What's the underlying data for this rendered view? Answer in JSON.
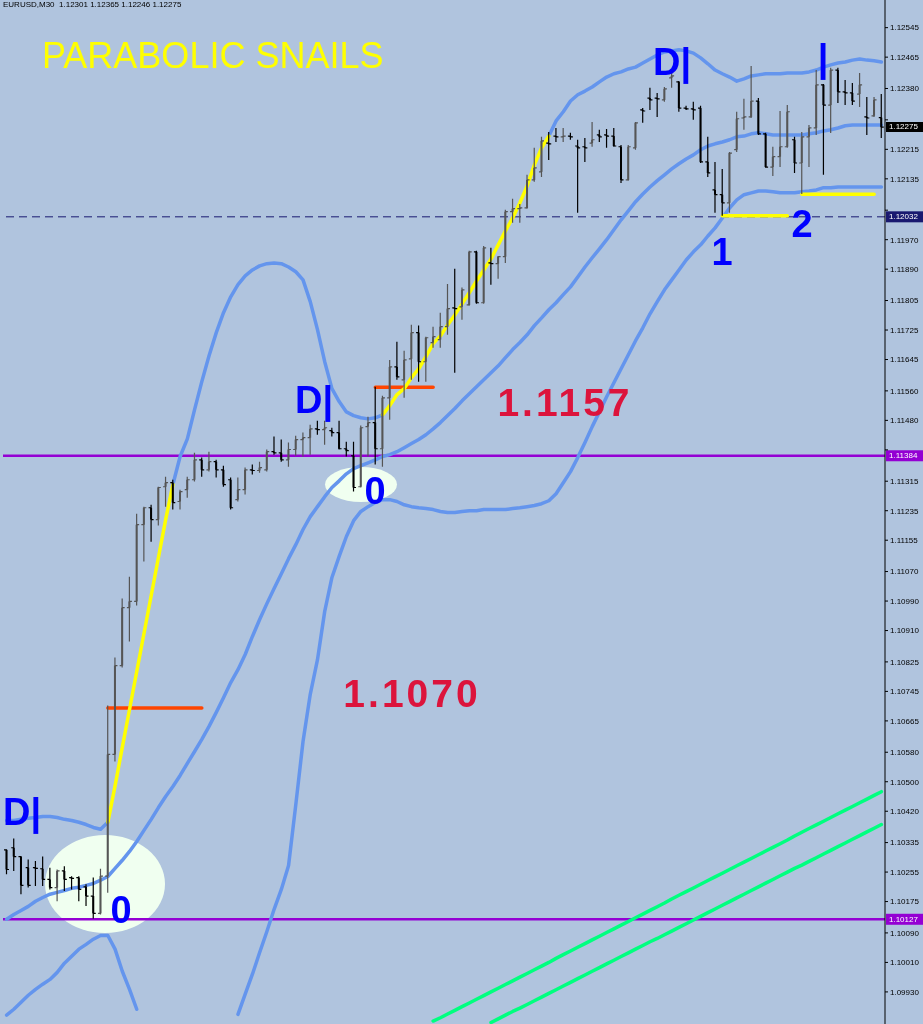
{
  "chart_data": {
    "type": "candlestick",
    "title": "PARABOLIC SNAILS",
    "subtitle": "EURUSD,M30  1.12301 1.12365 1.12246 1.12275",
    "categories": [
      null,
      null,
      null,
      null,
      null,
      null,
      null,
      null,
      null,
      null,
      null,
      null,
      null,
      null,
      null,
      null,
      null,
      null,
      null,
      null,
      null,
      null,
      null,
      null,
      null,
      null,
      null,
      null,
      null,
      null,
      null,
      null,
      null,
      null,
      null,
      null,
      null,
      null,
      null,
      null,
      null,
      null,
      null,
      null,
      null,
      null,
      null,
      null,
      null,
      null,
      null,
      null,
      null,
      null,
      null,
      null,
      null,
      null,
      null,
      null,
      null,
      null,
      null,
      null,
      null,
      null,
      null,
      null,
      null,
      null,
      null,
      null,
      null,
      null,
      null,
      null,
      null,
      null,
      null,
      null,
      null,
      null,
      null,
      null,
      null,
      null,
      null,
      null,
      null,
      null,
      null,
      null,
      null,
      null,
      null,
      null,
      null,
      null,
      null,
      null,
      null,
      null,
      null,
      null,
      null,
      null,
      null,
      null,
      null,
      null,
      null,
      null,
      null,
      null,
      null,
      null,
      null,
      null,
      null,
      null,
      null,
      null
    ],
    "colors": [
      "#000000",
      "#000000",
      "#000000",
      "#000000",
      "#000000",
      "#000000",
      "#000000",
      "#555555",
      "#000000",
      "#000000",
      "#000000",
      "#000000",
      "#000000",
      "#555555",
      "#555555",
      "#555555",
      "#555555",
      "#555555",
      "#555555",
      "#555555",
      "#000000",
      "#555555",
      "#555555",
      "#000000",
      "#555555",
      "#555555",
      "#555555",
      "#000000",
      "#555555",
      "#000000",
      "#000000",
      "#000000",
      "#555555",
      "#555555",
      "#000000",
      "#555555",
      "#555555",
      "#000000",
      "#000000",
      "#555555",
      "#555555",
      "#555555",
      "#555555",
      "#000000",
      "#555555",
      "#000000",
      "#000000",
      "#000000",
      "#000000",
      "#555555",
      "#555555",
      "#000000",
      "#555555",
      "#555555",
      "#000000",
      "#555555",
      "#555555",
      "#000000",
      "#555555",
      "#555555",
      "#555555",
      "#555555",
      "#000000",
      "#555555",
      "#555555",
      "#000000",
      "#555555",
      "#000000",
      "#555555",
      "#555555",
      "#555555",
      "#555555",
      "#555555",
      "#555555",
      "#555555",
      "#000000",
      "#000000",
      "#555555",
      "#000000",
      "#000000",
      "#000000",
      "#555555",
      "#000000",
      "#000000",
      "#000000",
      "#000000",
      "#555555",
      "#555555",
      "#000000",
      "#000000",
      "#000000",
      "#555555",
      "#555555",
      "#000000",
      "#000000",
      "#000000",
      "#000000",
      "#000000",
      "#000000",
      "#000000",
      "#555555",
      "#555555",
      "#555555",
      "#555555",
      "#000000",
      "#000000",
      "#555555",
      "#555555",
      "#555555",
      "#000000",
      "#555555",
      "#555555",
      "#555555",
      "#000000",
      "#555555",
      "#000000",
      "#000000",
      "#000000",
      "#555555",
      "#000000",
      "#555555",
      "#000000"
    ],
    "ohlc": [
      [
        1.10315,
        1.10317,
        1.10249,
        1.10262
      ],
      [
        1.10321,
        1.10346,
        1.10258,
        1.10297
      ],
      [
        1.10297,
        1.10298,
        1.10195,
        1.10219
      ],
      [
        1.10267,
        1.10289,
        1.10213,
        1.10219
      ],
      [
        1.10267,
        1.10285,
        1.10217,
        1.10265
      ],
      [
        1.10264,
        1.10297,
        1.10217,
        1.10235
      ],
      [
        1.10235,
        1.10267,
        1.10208,
        1.10213
      ],
      [
        1.10213,
        1.10262,
        1.10176,
        1.10258
      ],
      [
        1.10258,
        1.10271,
        1.10204,
        1.10235
      ],
      [
        1.1024,
        1.10244,
        1.10208,
        1.10238
      ],
      [
        1.1024,
        1.10244,
        1.10176,
        1.10208
      ],
      [
        1.10215,
        1.10222,
        1.10163,
        1.1019
      ],
      [
        1.1019,
        1.1024,
        1.10129,
        1.10143
      ],
      [
        1.10143,
        1.10264,
        1.1014,
        1.10244
      ],
      [
        1.10244,
        1.10707,
        1.10199,
        1.10574
      ],
      [
        1.10574,
        1.10837,
        1.10555,
        1.10815
      ],
      [
        1.10815,
        1.10997,
        1.1081,
        1.10972
      ],
      [
        1.10972,
        1.11056,
        1.1088,
        1.10989
      ],
      [
        1.10989,
        1.11227,
        1.10978,
        1.11197
      ],
      [
        1.11197,
        1.11246,
        1.11097,
        1.11243
      ],
      [
        1.11243,
        1.11251,
        1.11151,
        1.11211
      ],
      [
        1.11211,
        1.113,
        1.11195,
        1.11298
      ],
      [
        1.113,
        1.11327,
        1.11246,
        1.11311
      ],
      [
        1.11311,
        1.11319,
        1.11238,
        1.11257
      ],
      [
        1.1126,
        1.11292,
        1.11238,
        1.11287
      ],
      [
        1.11292,
        1.11327,
        1.1127,
        1.11319
      ],
      [
        1.11319,
        1.11392,
        1.11314,
        1.11373
      ],
      [
        1.11373,
        1.11379,
        1.11327,
        1.11346
      ],
      [
        1.11346,
        1.11395,
        1.11341,
        1.11368
      ],
      [
        1.11368,
        1.11373,
        1.11325,
        1.11346
      ],
      [
        1.11346,
        1.11357,
        1.113,
        1.11306
      ],
      [
        1.11319,
        1.11325,
        1.11238,
        1.11243
      ],
      [
        1.11265,
        1.11325,
        1.1126,
        1.11292
      ],
      [
        1.11292,
        1.11352,
        1.11279,
        1.11346
      ],
      [
        1.11346,
        1.1136,
        1.11333,
        1.11344
      ],
      [
        1.11344,
        1.11368,
        1.11338,
        1.11352
      ],
      [
        1.11346,
        1.11401,
        1.11341,
        1.11395
      ],
      [
        1.11395,
        1.11436,
        1.11387,
        1.11392
      ],
      [
        1.11392,
        1.11428,
        1.11368,
        1.11373
      ],
      [
        1.11373,
        1.1142,
        1.11354,
        1.11401
      ],
      [
        1.11401,
        1.11438,
        1.11384,
        1.11428
      ],
      [
        1.11428,
        1.11447,
        1.11382,
        1.11433
      ],
      [
        1.11433,
        1.11468,
        1.11387,
        1.11457
      ],
      [
        1.11457,
        1.11479,
        1.11441,
        1.11455
      ],
      [
        1.11455,
        1.11479,
        1.11414,
        1.1146
      ],
      [
        1.11452,
        1.1146,
        1.11436,
        1.11447
      ],
      [
        1.11447,
        1.11479,
        1.11401,
        1.11403
      ],
      [
        1.11403,
        1.11422,
        1.11382,
        1.11398
      ],
      [
        1.11384,
        1.11422,
        1.11287,
        1.11298
      ],
      [
        1.113,
        1.11466,
        1.11298,
        1.1146
      ],
      [
        1.11463,
        1.1149,
        1.11382,
        1.11474
      ],
      [
        1.11474,
        1.11571,
        1.1136,
        1.11403
      ],
      [
        1.11403,
        1.11547,
        1.11354,
        1.11541
      ],
      [
        1.11541,
        1.11644,
        1.11482,
        1.11625
      ],
      [
        1.11625,
        1.11693,
        1.1159,
        1.11598
      ],
      [
        1.1159,
        1.11669,
        1.11541,
        1.11644
      ],
      [
        1.11647,
        1.11739,
        1.1159,
        1.11718
      ],
      [
        1.11718,
        1.11737,
        1.11585,
        1.11639
      ],
      [
        1.11639,
        1.11707,
        1.11585,
        1.11704
      ],
      [
        1.11691,
        1.11734,
        1.11677,
        1.11707
      ],
      [
        1.11699,
        1.11772,
        1.11677,
        1.11734
      ],
      [
        1.11734,
        1.1185,
        1.11712,
        1.11783
      ],
      [
        1.11785,
        1.11891,
        1.11609,
        1.11783
      ],
      [
        1.11788,
        1.1184,
        1.11753,
        1.11834
      ],
      [
        1.11793,
        1.1194,
        1.11791,
        1.11937
      ],
      [
        1.11937,
        1.1194,
        1.11796,
        1.11799
      ],
      [
        1.11799,
        1.11953,
        1.11796,
        1.11948
      ],
      [
        1.11907,
        1.11948,
        1.11848,
        1.11905
      ],
      [
        1.11905,
        1.11926,
        1.11864,
        1.11924
      ],
      [
        1.11924,
        1.12051,
        1.11907,
        1.12046
      ],
      [
        1.12046,
        1.12081,
        1.12016,
        1.12054
      ],
      [
        1.12054,
        1.12067,
        1.12016,
        1.12056
      ],
      [
        1.12056,
        1.12146,
        1.12054,
        1.12132
      ],
      [
        1.12132,
        1.12219,
        1.12127,
        1.12165
      ],
      [
        1.12154,
        1.12249,
        1.1214,
        1.12238
      ],
      [
        1.12232,
        1.12262,
        1.12186,
        1.1223
      ],
      [
        1.12251,
        1.12273,
        1.12235,
        1.12249
      ],
      [
        1.12249,
        1.12273,
        1.12235,
        1.12251
      ],
      [
        1.12251,
        1.1226,
        1.12241,
        1.12249
      ],
      [
        1.12224,
        1.12241,
        1.12043,
        1.12219
      ],
      [
        1.12222,
        1.12246,
        1.12181,
        1.12219
      ],
      [
        1.12232,
        1.12289,
        1.12222,
        1.12241
      ],
      [
        1.12254,
        1.12268,
        1.12235,
        1.12249
      ],
      [
        1.12254,
        1.1227,
        1.12219,
        1.12251
      ],
      [
        1.12251,
        1.12273,
        1.12222,
        1.12224
      ],
      [
        1.12222,
        1.12227,
        1.12124,
        1.12132
      ],
      [
        1.12132,
        1.12227,
        1.1213,
        1.12222
      ],
      [
        1.12219,
        1.12289,
        1.12214,
        1.12287
      ],
      [
        1.12322,
        1.12327,
        1.12287,
        1.12319
      ],
      [
        1.12354,
        1.12382,
        1.12322,
        1.12349
      ],
      [
        1.12354,
        1.12368,
        1.12303,
        1.12352
      ],
      [
        1.12349,
        1.12384,
        1.12344,
        1.12379
      ],
      [
        1.12409,
        1.12422,
        1.12382,
        1.12414
      ],
      [
        1.12398,
        1.124,
        1.12317,
        1.12327
      ],
      [
        1.12327,
        1.12333,
        1.12322,
        1.12325
      ],
      [
        1.12325,
        1.12344,
        1.12295,
        1.12322
      ],
      [
        1.12327,
        1.12333,
        1.12178,
        1.12181
      ],
      [
        1.12181,
        1.12249,
        1.1214,
        1.12151
      ],
      [
        1.12105,
        1.12181,
        1.12043,
        1.12092
      ],
      [
        1.12092,
        1.12162,
        1.12035,
        1.1207
      ],
      [
        1.1207,
        1.12208,
        1.12043,
        1.12205
      ],
      [
        1.12214,
        1.12317,
        1.12208,
        1.12298
      ],
      [
        1.123,
        1.12352,
        1.12268,
        1.12303
      ],
      [
        1.12303,
        1.12441,
        1.123,
        1.12346
      ],
      [
        1.12346,
        1.12354,
        1.12254,
        1.12257
      ],
      [
        1.12257,
        1.1226,
        1.12165,
        1.12167
      ],
      [
        1.12167,
        1.12222,
        1.12143,
        1.12195
      ],
      [
        1.12195,
        1.12319,
        1.12167,
        1.12222
      ],
      [
        1.12222,
        1.12335,
        1.12219,
        1.12317
      ],
      [
        1.12241,
        1.12249,
        1.12151,
        1.12178
      ],
      [
        1.12178,
        1.12262,
        1.12094,
        1.12249
      ],
      [
        1.12249,
        1.12281,
        1.12167,
        1.12273
      ],
      [
        1.12273,
        1.1243,
        1.12254,
        1.1239
      ],
      [
        1.1239,
        1.12392,
        1.12146,
        1.12335
      ],
      [
        1.12335,
        1.12436,
        1.12259,
        1.1243
      ],
      [
        1.1243,
        1.12436,
        1.12341,
        1.12371
      ],
      [
        1.12371,
        1.12403,
        1.12335,
        1.12368
      ],
      [
        1.12368,
        1.12395,
        1.12335,
        1.12346
      ],
      [
        1.12365,
        1.12422,
        1.1233,
        1.1239
      ],
      [
        1.12303,
        1.12357,
        1.12254,
        1.123
      ],
      [
        1.12306,
        1.12357,
        1.12303,
        1.12349
      ],
      [
        1.12301,
        1.12365,
        1.12246,
        1.12275
      ]
    ],
    "series": [
      {
        "type": "line",
        "color": "#6495ed",
        "values": [
          1.10395,
          1.10395,
          1.10398,
          1.10401,
          1.10403,
          1.10406,
          1.10406,
          1.10403,
          1.10398,
          1.10395,
          1.1039,
          1.10384,
          1.10376,
          1.10371,
          1.1039,
          null,
          null,
          null,
          null,
          null,
          null,
          null,
          null,
          1.11306,
          1.11382,
          1.1143,
          1.11509,
          1.11585,
          1.11655,
          1.11718,
          1.11772,
          1.11815,
          1.11848,
          1.11872,
          1.11888,
          1.11899,
          1.11905,
          1.11907,
          1.11905,
          1.11896,
          1.11883,
          1.11861,
          1.11802,
          1.11726,
          1.11639,
          1.11566,
          1.11531,
          1.11503,
          1.11493,
          1.11487,
          1.11484,
          1.11487,
          1.11495,
          null,
          null,
          null,
          null,
          null,
          null,
          null,
          null,
          null,
          null,
          null,
          null,
          null,
          null,
          null,
          null,
          null,
          null,
          null,
          null,
          null,
          null,
          1.12251,
          1.12292,
          1.12317,
          1.12346,
          1.12363,
          1.12373,
          1.12384,
          1.12398,
          1.12411,
          1.1242,
          1.12425,
          1.12433,
          1.12438,
          1.12449,
          1.1246,
          1.12471,
          1.12479,
          1.12482,
          1.12485,
          1.12482,
          1.12476,
          1.12463,
          1.12447,
          1.1243,
          1.1242,
          1.12411,
          1.124,
          1.12406,
          1.12414,
          1.12417,
          1.1242,
          1.1242,
          1.1242,
          1.12422,
          1.12422,
          1.12422,
          1.12425,
          1.1243,
          1.12438,
          1.12444,
          1.12449,
          1.12452,
          1.12457,
          1.1246,
          1.12457,
          1.12455,
          1.12452
        ]
      },
      {
        "type": "line",
        "color": "#6495ed",
        "values": [
          1.10127,
          1.1014,
          1.10151,
          1.10162,
          1.10176,
          1.10186,
          1.10195,
          1.102,
          1.10205,
          1.10211,
          1.10214,
          1.10219,
          1.10224,
          1.10233,
          1.10243,
          1.10265,
          1.10287,
          1.10311,
          1.10338,
          1.10368,
          1.10398,
          1.1043,
          1.1046,
          1.10487,
          1.10517,
          1.1055,
          1.10582,
          1.10615,
          1.1065,
          1.10688,
          1.10728,
          1.10769,
          1.10804,
          1.10845,
          1.10894,
          1.1094,
          1.10983,
          1.11024,
          1.11064,
          1.11105,
          1.11143,
          1.11184,
          1.11219,
          1.11246,
          1.11273,
          1.11298,
          1.11316,
          1.11335,
          1.11349,
          1.11357,
          1.11365,
          1.11373,
          1.11382,
          1.11387,
          1.11395,
          1.11406,
          1.11417,
          1.11428,
          1.11441,
          1.11457,
          1.11474,
          1.11493,
          1.11512,
          1.11533,
          1.11552,
          1.11571,
          1.1159,
          1.11609,
          1.11628,
          1.1165,
          1.11672,
          1.11691,
          1.11712,
          1.11737,
          1.11758,
          1.1178,
          1.11799,
          1.11821,
          1.11842,
          1.11869,
          1.11896,
          1.11921,
          1.11945,
          1.1197,
          1.11997,
          1.12024,
          1.12048,
          1.12073,
          1.12094,
          1.12113,
          1.1213,
          1.12146,
          1.12162,
          1.12176,
          1.12189,
          1.122,
          1.12214,
          1.12224,
          1.1223,
          1.12235,
          1.12241,
          1.12249,
          1.12251,
          1.12257,
          1.1226,
          1.12257,
          1.12254,
          1.12254,
          1.12254,
          1.12254,
          1.12254,
          1.12257,
          1.1226,
          1.12265,
          1.12268,
          1.12273,
          1.12279,
          1.12281,
          1.12281,
          1.12281,
          1.12281,
          1.12281
        ]
      },
      {
        "type": "line",
        "color": "#6495ed",
        "values": [
          1.09867,
          1.09883,
          1.09902,
          1.09921,
          1.09937,
          1.09951,
          1.09964,
          1.09983,
          1.10008,
          1.10027,
          1.10046,
          1.10059,
          1.10073,
          1.10083,
          1.10083,
          1.10046,
          1.09986,
          1.09937,
          1.09883,
          null,
          null,
          null,
          null,
          null,
          null,
          null,
          null,
          null,
          null,
          null,
          null,
          null,
          1.09869,
          1.09924,
          1.09978,
          1.10037,
          1.10094,
          1.10154,
          1.10208,
          1.10273,
          1.10438,
          1.10609,
          1.10737,
          1.10831,
          1.10962,
          1.11054,
          1.11111,
          1.11165,
          1.11208,
          1.11233,
          1.11246,
          1.11257,
          1.11265,
          1.11265,
          1.1126,
          1.11251,
          1.11246,
          1.11243,
          1.11241,
          1.11238,
          1.11233,
          1.1123,
          1.1123,
          1.11233,
          1.11235,
          1.11235,
          1.11238,
          1.11238,
          1.11238,
          1.11238,
          1.11241,
          1.11243,
          1.11246,
          1.11249,
          1.11254,
          1.11262,
          1.11281,
          1.11311,
          1.11341,
          1.11379,
          1.1142,
          1.11463,
          1.11503,
          1.11544,
          1.11582,
          1.1162,
          1.11658,
          1.11696,
          1.11731,
          1.11769,
          1.11802,
          1.11834,
          1.11861,
          1.11888,
          1.11915,
          1.11937,
          1.11956,
          1.1198,
          1.12002,
          1.12029,
          1.12056,
          1.12078,
          1.12092,
          1.12097,
          1.12102,
          1.12102,
          1.121,
          1.12097,
          1.12097,
          1.12097,
          1.121,
          1.12102,
          1.12105,
          1.12111,
          1.12111,
          1.12113,
          1.12113,
          1.12113,
          1.12113,
          1.12113,
          1.12113,
          1.12113
        ]
      },
      {
        "type": "line",
        "color": "#00ff7f",
        "values": [
          null,
          null,
          null,
          null,
          null,
          null,
          null,
          null,
          null,
          null,
          null,
          null,
          null,
          null,
          null,
          null,
          null,
          null,
          null,
          null,
          null,
          null,
          null,
          null,
          null,
          null,
          null,
          null,
          null,
          null,
          null,
          null,
          null,
          null,
          null,
          null,
          null,
          null,
          null,
          null,
          null,
          null,
          null,
          null,
          null,
          null,
          null,
          null,
          null,
          null,
          null,
          null,
          null,
          null,
          null,
          null,
          null,
          null,
          null,
          1.09851,
          1.0986,
          1.0987,
          1.0988,
          1.0989,
          1.099,
          1.0991,
          1.0992,
          1.0993,
          1.0994,
          1.0995,
          1.0996,
          1.0997,
          1.0998,
          1.0999,
          1.1,
          1.1001,
          1.10021,
          1.10031,
          1.10041,
          1.10051,
          1.10061,
          1.10071,
          1.10081,
          1.10091,
          1.10101,
          1.10111,
          1.10121,
          1.10131,
          1.10141,
          1.10151,
          1.10161,
          1.10171,
          1.10182,
          1.10192,
          1.10202,
          1.10212,
          1.10222,
          1.10232,
          1.10242,
          1.10252,
          1.10262,
          1.10272,
          1.10282,
          1.10292,
          1.10302,
          1.10312,
          1.10322,
          1.10332,
          1.10342,
          1.10353,
          1.10363,
          1.10373,
          1.10383,
          1.10393,
          1.10403,
          1.10413,
          1.10423,
          1.10433,
          1.10443,
          1.10453,
          1.10463,
          1.10473
        ]
      },
      {
        "type": "line",
        "color": "#00ff7f",
        "values": [
          null,
          null,
          null,
          null,
          null,
          null,
          null,
          null,
          null,
          null,
          null,
          null,
          null,
          null,
          null,
          null,
          null,
          null,
          null,
          null,
          null,
          null,
          null,
          null,
          null,
          null,
          null,
          null,
          null,
          null,
          null,
          null,
          null,
          null,
          null,
          null,
          null,
          null,
          null,
          null,
          null,
          null,
          null,
          null,
          null,
          null,
          null,
          null,
          null,
          null,
          null,
          null,
          null,
          null,
          null,
          null,
          null,
          null,
          null,
          null,
          null,
          null,
          null,
          null,
          null,
          null,
          null,
          1.09847,
          1.09857,
          1.09867,
          1.09877,
          1.09886,
          1.09896,
          1.09906,
          1.09916,
          1.09926,
          1.09936,
          1.09946,
          1.09956,
          1.09966,
          1.09976,
          1.09986,
          1.09996,
          1.10006,
          1.10016,
          1.10026,
          1.10036,
          1.10046,
          1.10056,
          1.10066,
          1.10075,
          1.10085,
          1.10095,
          1.10105,
          1.10115,
          1.10125,
          1.10135,
          1.10145,
          1.10155,
          1.10165,
          1.10175,
          1.10185,
          1.10195,
          1.10205,
          1.10215,
          1.10225,
          1.10235,
          1.10245,
          1.10255,
          1.10265,
          1.10274,
          1.10284,
          1.10294,
          1.10304,
          1.10314,
          1.10324,
          1.10334,
          1.10344,
          1.10354,
          1.10364,
          1.10374,
          1.10384
        ]
      },
      {
        "type": "line",
        "color": "#ff4500",
        "values": [
          null,
          null,
          null,
          null,
          null,
          null,
          null,
          null,
          null,
          null,
          null,
          null,
          null,
          null,
          1.107,
          1.107,
          1.107,
          1.107,
          1.107,
          1.107,
          1.107,
          1.107,
          1.107,
          1.107,
          1.107,
          1.107,
          1.107,
          1.107,
          null,
          null,
          null,
          null,
          null,
          null,
          null,
          null,
          null,
          null,
          null,
          null,
          null,
          null,
          null,
          null,
          null,
          null,
          null,
          null,
          null,
          null,
          null,
          1.1157,
          1.1157,
          1.1157,
          1.1157,
          1.1157,
          1.1157,
          1.1157,
          1.1157,
          1.1157,
          null,
          null,
          null,
          null,
          null,
          null,
          null,
          null,
          null,
          null,
          null,
          null,
          null,
          null,
          null,
          null,
          null,
          null,
          null,
          null,
          null,
          null,
          null,
          null,
          null,
          null,
          null,
          null,
          null,
          null,
          null,
          null,
          null,
          null,
          null,
          null,
          null,
          null,
          null,
          null,
          null,
          null,
          null,
          null,
          null,
          null,
          null,
          null,
          null,
          null,
          null,
          null,
          null,
          null,
          null,
          null,
          null,
          null,
          null,
          null,
          null,
          null
        ]
      },
      {
        "type": "line",
        "color": "#ffff00",
        "values": [
          null,
          null,
          null,
          null,
          null,
          null,
          null,
          null,
          null,
          null,
          null,
          null,
          null,
          null,
          1.1039,
          1.10489,
          1.10593,
          1.10696,
          1.10799,
          1.10902,
          1.11005,
          1.11108,
          1.11211,
          1.11306,
          null,
          null,
          null,
          null,
          null,
          null,
          null,
          null,
          null,
          null,
          null,
          null,
          null,
          null,
          null,
          null,
          null,
          null,
          null,
          null,
          null,
          null,
          null,
          null,
          null,
          null,
          null,
          null,
          1.11495,
          1.1152,
          1.1155,
          1.11566,
          1.11596,
          1.1162,
          1.11653,
          1.11688,
          1.11709,
          1.11739,
          1.11766,
          1.11796,
          1.11826,
          1.11858,
          1.11888,
          1.11918,
          1.11956,
          1.11994,
          1.12029,
          1.1207,
          1.12116,
          1.12173,
          1.12219,
          1.12251,
          null,
          null,
          null,
          null,
          null,
          null,
          null,
          null,
          null,
          null,
          null,
          null,
          null,
          null,
          null,
          null,
          null,
          null,
          null,
          null,
          null,
          null,
          null,
          1.12035,
          1.12035,
          1.12035,
          1.12035,
          1.12035,
          1.12035,
          1.12035,
          1.12035,
          1.12035,
          1.12035,
          null,
          1.12093,
          1.12093,
          1.12093,
          1.12093,
          1.12093,
          1.12093,
          1.12093,
          1.12093,
          1.12093,
          1.12093,
          1.12093,
          null
        ]
      }
    ],
    "ylim": [
      1.09843,
      1.1262
    ],
    "yticks": [
      1.12545,
      1.12465,
      {
        "value": 1.1238,
        "label": "1.12380"
      },
      {
        "value": 1.12295,
        "label": null
      },
      1.12215,
      1.12135,
      {
        "value": 1.1205,
        "label": null
      },
      {
        "value": 1.1197,
        "label": "1.11970"
      },
      {
        "value": 1.1189,
        "label": "1.11890"
      },
      1.11805,
      1.11725,
      1.11645,
      {
        "value": 1.1156,
        "label": "1.11560"
      },
      {
        "value": 1.1148,
        "label": "1.11480"
      },
      {
        "value": 1.114,
        "label": null
      },
      1.11315,
      1.11235,
      1.11155,
      {
        "value": 1.1107,
        "label": "1.11070"
      },
      {
        "value": 1.1099,
        "label": "1.10990"
      },
      {
        "value": 1.1091,
        "label": "1.10910"
      },
      1.10825,
      1.10745,
      1.10665,
      {
        "value": 1.1058,
        "label": "1.10580"
      },
      {
        "value": 1.105,
        "label": "1.10500"
      },
      {
        "value": 1.1042,
        "label": "1.10420"
      },
      1.10335,
      1.10255,
      1.10175,
      {
        "value": 1.1009,
        "label": "1.10090"
      },
      {
        "value": 1.1001,
        "label": "1.10010"
      },
      {
        "value": 1.0993,
        "label": "1.09930"
      }
    ],
    "tick_labels": "y",
    "ref_lines": [
      {
        "axis": "y",
        "value": 1.11384,
        "label": "1.11384",
        "color": "#9400d3"
      },
      {
        "axis": "y",
        "value": 1.10127,
        "label": "1.10127",
        "color": "#9400d3"
      },
      {
        "axis": "y",
        "value": 1.12032,
        "label": "1.12032",
        "color": "#191970",
        "line_style": "dashed"
      }
    ],
    "annotations": [
      "D|",
      "0",
      "D|",
      "0",
      "D|",
      "|",
      "1",
      "2",
      "1.1157",
      "1.1070",
      "1.12275"
    ]
  }
}
